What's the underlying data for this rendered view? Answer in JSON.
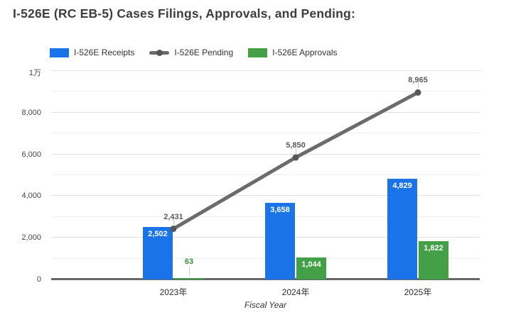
{
  "title": "I-526E (RC EB-5) Cases Filings, Approvals, and Pending:",
  "chart_data": {
    "type": "combo-bar-line",
    "categories": [
      "2023年",
      "2024年",
      "2025年"
    ],
    "series": [
      {
        "name": "I-526E Receipts",
        "type": "bar",
        "color": "#1a73e8",
        "values": [
          2502,
          3658,
          4829
        ]
      },
      {
        "name": "I-526E Pending",
        "type": "line",
        "color": "#6b6b6b",
        "point_color": "#575757",
        "values": [
          2431,
          5850,
          8965
        ]
      },
      {
        "name": "I-526E Approvals",
        "type": "bar",
        "color": "#43a047",
        "values": [
          63,
          1044,
          1822
        ]
      }
    ],
    "xlabel": "Fiscal Year",
    "y_axis": {
      "max": 10000,
      "major_step": 2000,
      "minor_step": 1000,
      "tick_labels": [
        "0",
        "2,000",
        "4,000",
        "6,000",
        "8,000",
        "1万"
      ]
    },
    "legend_position": "top",
    "grid": true,
    "annotation_colors": {
      "bar_inside": "#ffffff",
      "line": "#5c5c5c",
      "small_bar": "#3a8f3e"
    }
  }
}
